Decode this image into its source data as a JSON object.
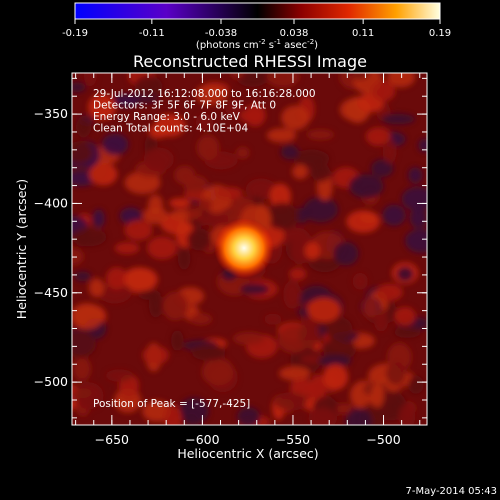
{
  "chart_data": {
    "type": "heatmap",
    "title": "Reconstructed RHESSI Image",
    "xlabel": "Heliocentric X (arcsec)",
    "ylabel": "Heliocentric Y (arcsec)",
    "xlim": [
      -672,
      -476
    ],
    "ylim": [
      -524,
      -327
    ],
    "x_ticks": [
      -650,
      -600,
      -550,
      -500
    ],
    "y_ticks": [
      -350,
      -400,
      -450,
      -500
    ],
    "colorbar": {
      "min": -0.19,
      "max": 0.19,
      "tick_values": [
        -0.19,
        -0.11,
        -0.038,
        0.038,
        0.11,
        0.19
      ],
      "tick_labels": [
        "-0.19",
        "-0.11",
        "-0.038",
        "0.038",
        "0.11",
        "0.19"
      ],
      "unit_main": "(photons cm",
      "unit_sup1": "-2",
      "unit_mid": " s",
      "unit_sup2": "-1",
      "unit_end": " asec",
      "unit_sup3": "-2",
      "unit_close": ")"
    },
    "info_lines": [
      "29-Jul-2012 16:12:08.000 to 16:16:28.000",
      "Detectors: 3F 5F 6F 7F 8F 9F, Att 0",
      "Energy Range: 3.0 - 6.0 keV",
      "Clean    Total counts: 4.10E+04"
    ],
    "peak_label": "Position of Peak = [-577,-425]",
    "peak": {
      "x": -577,
      "y": -425,
      "value": 0.19
    },
    "date_stamp": "7-May-2014 05:43"
  }
}
